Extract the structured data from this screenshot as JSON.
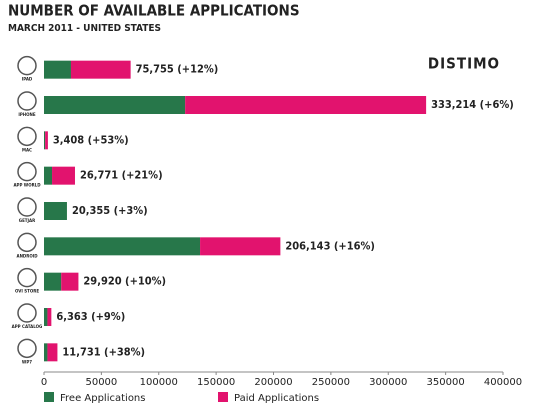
{
  "chart_data": {
    "type": "bar",
    "orientation": "horizontal",
    "stacked": true,
    "title": "NUMBER OF AVAILABLE APPLICATIONS",
    "subtitle": "MARCH 2011  - UNITED STATES",
    "brand": "DISTIMO",
    "categories": [
      "IPAD",
      "IPHONE",
      "MAC",
      "APP WORLD",
      "GETJAR",
      "ANDROID",
      "OVI STORE",
      "APP CATALOG",
      "WP7"
    ],
    "series": [
      {
        "name": "Free Applications",
        "color": "#27774a",
        "values": [
          23500,
          123000,
          1000,
          7000,
          20000,
          136000,
          15000,
          3000,
          3000
        ]
      },
      {
        "name": "Paid Applications",
        "color": "#e2136e",
        "values": [
          52000,
          210000,
          2400,
          20000,
          0,
          70000,
          15000,
          3400,
          8700
        ]
      }
    ],
    "annotations": [
      "75,755 (+12%)",
      "333,214 (+6%)",
      "3,408 (+53%)",
      "26,771 (+21%)",
      "20,355 (+3%)",
      "206,143 (+16%)",
      "29,920 (+10%)",
      "6,363 (+9%)",
      "11,731 (+38%)"
    ],
    "xlim": [
      0,
      400000
    ],
    "xticks": [
      0,
      50000,
      100000,
      150000,
      200000,
      250000,
      300000,
      350000,
      400000
    ],
    "legend": "bottom"
  }
}
